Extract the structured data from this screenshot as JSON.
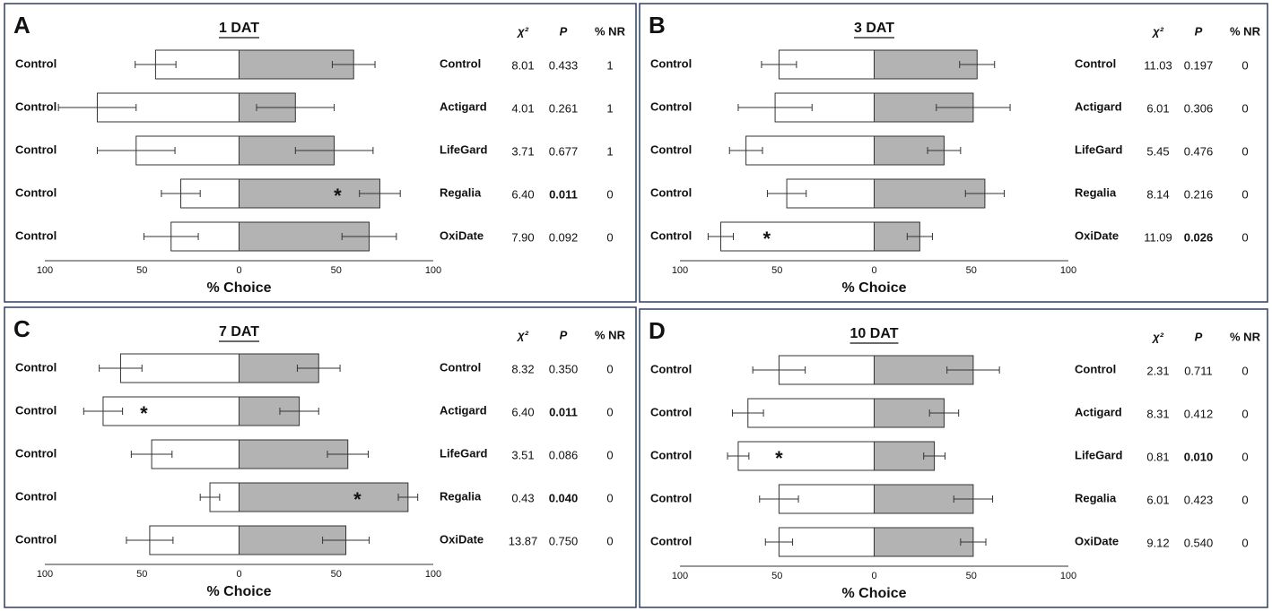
{
  "chart_data": [
    {
      "type": "diverging-bar",
      "panel": "A",
      "title": "1 DAT",
      "xlabel": "% Choice",
      "xlim": [
        -100,
        100
      ],
      "xticks": [
        {
          "value": -100,
          "label": "100"
        },
        {
          "value": -50,
          "label": "50"
        },
        0,
        50,
        100
      ],
      "left_labels": [
        "Control",
        "Control",
        "Control",
        "Control",
        "Control"
      ],
      "categories": [
        "Control",
        "Actigard",
        "LifeGard",
        "Regalia",
        "OxiDate"
      ],
      "left_color": "#ffffff",
      "right_color": "#b3b3b3",
      "left_values": [
        43,
        73,
        53,
        30,
        35
      ],
      "left_errors": [
        10.5,
        20,
        20,
        10,
        14
      ],
      "right_values": [
        59,
        29,
        49,
        72.5,
        67
      ],
      "right_errors": [
        11,
        20,
        20,
        10.5,
        14
      ],
      "annotations": [
        {
          "row": 3,
          "side": "right",
          "text": "*"
        }
      ],
      "stats_header": [
        "χ²",
        "P",
        "% NR"
      ],
      "stats": [
        [
          "8.01",
          "0.433",
          "1"
        ],
        [
          "4.01",
          "0.261",
          "1"
        ],
        [
          "3.71",
          "0.677",
          "1"
        ],
        [
          "6.40",
          "0.011",
          "0"
        ],
        [
          "7.90",
          "0.092",
          "0"
        ]
      ],
      "p_bold": [
        false,
        false,
        false,
        true,
        false
      ]
    },
    {
      "type": "diverging-bar",
      "panel": "B",
      "title": "3 DAT",
      "xlabel": "% Choice",
      "xlim": [
        -100,
        100
      ],
      "xticks": [
        {
          "value": -100,
          "label": "100"
        },
        {
          "value": -50,
          "label": "50"
        },
        0,
        50,
        100
      ],
      "left_labels": [
        "Control",
        "Control",
        "Control",
        "Control",
        "Control"
      ],
      "categories": [
        "Control",
        "Actigard",
        "LifeGard",
        "Regalia",
        "OxiDate"
      ],
      "left_color": "#ffffff",
      "right_color": "#b3b3b3",
      "left_values": [
        49,
        51,
        66,
        45,
        79
      ],
      "left_errors": [
        9,
        19,
        8.5,
        10,
        6.5
      ],
      "right_values": [
        53,
        51,
        36,
        57,
        23.5
      ],
      "right_errors": [
        9,
        19,
        8.5,
        10,
        6.5
      ],
      "annotations": [
        {
          "row": 4,
          "side": "left",
          "text": "*"
        }
      ],
      "stats_header": [
        "χ²",
        "P",
        "% NR"
      ],
      "stats": [
        [
          "11.03",
          "0.197",
          "0"
        ],
        [
          "6.01",
          "0.306",
          "0"
        ],
        [
          "5.45",
          "0.476",
          "0"
        ],
        [
          "8.14",
          "0.216",
          "0"
        ],
        [
          "11.09",
          "0.026",
          "0"
        ]
      ],
      "p_bold": [
        false,
        false,
        false,
        false,
        true
      ]
    },
    {
      "type": "diverging-bar",
      "panel": "C",
      "title": "7 DAT",
      "xlabel": "% Choice",
      "xlim": [
        -100,
        100
      ],
      "xticks": [
        {
          "value": -100,
          "label": "100"
        },
        {
          "value": -50,
          "label": "50"
        },
        0,
        50,
        100
      ],
      "left_labels": [
        "Control",
        "Control",
        "Control",
        "Control",
        "Control"
      ],
      "categories": [
        "Control",
        "Actigard",
        "LifeGard",
        "Regalia",
        "OxiDate"
      ],
      "left_color": "#ffffff",
      "right_color": "#b3b3b3",
      "left_values": [
        61,
        70,
        45,
        15,
        46
      ],
      "left_errors": [
        11,
        10,
        10.5,
        5,
        12
      ],
      "right_values": [
        41,
        31,
        56,
        87,
        55
      ],
      "right_errors": [
        11,
        10,
        10.5,
        5,
        12
      ],
      "annotations": [
        {
          "row": 1,
          "side": "left",
          "text": "*"
        },
        {
          "row": 3,
          "side": "right",
          "text": "*"
        }
      ],
      "stats_header": [
        "χ²",
        "P",
        "% NR"
      ],
      "stats": [
        [
          "8.32",
          "0.350",
          "0"
        ],
        [
          "6.40",
          "0.011",
          "0"
        ],
        [
          "3.51",
          "0.086",
          "0"
        ],
        [
          "0.43",
          "0.040",
          "0"
        ],
        [
          "13.87",
          "0.750",
          "0"
        ]
      ],
      "p_bold": [
        false,
        true,
        false,
        true,
        false
      ]
    },
    {
      "type": "diverging-bar",
      "panel": "D",
      "title": "10 DAT",
      "xlabel": "% Choice",
      "xlim": [
        -100,
        100
      ],
      "xticks": [
        {
          "value": -100,
          "label": "100"
        },
        {
          "value": -50,
          "label": "50"
        },
        0,
        50,
        100
      ],
      "left_labels": [
        "Control",
        "Control",
        "Control",
        "Control",
        "Control"
      ],
      "categories": [
        "Control",
        "Actigard",
        "LifeGard",
        "Regalia",
        "OxiDate"
      ],
      "left_color": "#ffffff",
      "right_color": "#b3b3b3",
      "left_values": [
        49,
        65,
        70,
        49,
        49
      ],
      "left_errors": [
        13.5,
        8,
        5.5,
        10,
        7
      ],
      "right_values": [
        51,
        36,
        31,
        51,
        51
      ],
      "right_errors": [
        13.5,
        7.5,
        5.5,
        10,
        6.5
      ],
      "annotations": [
        {
          "row": 2,
          "side": "left",
          "text": "*"
        }
      ],
      "stats_header": [
        "χ²",
        "P",
        "% NR"
      ],
      "stats": [
        [
          "2.31",
          "0.711",
          "0"
        ],
        [
          "8.31",
          "0.412",
          "0"
        ],
        [
          "0.81",
          "0.010",
          "0"
        ],
        [
          "6.01",
          "0.423",
          "0"
        ],
        [
          "9.12",
          "0.540",
          "0"
        ]
      ],
      "p_bold": [
        false,
        false,
        true,
        false,
        false
      ]
    }
  ]
}
